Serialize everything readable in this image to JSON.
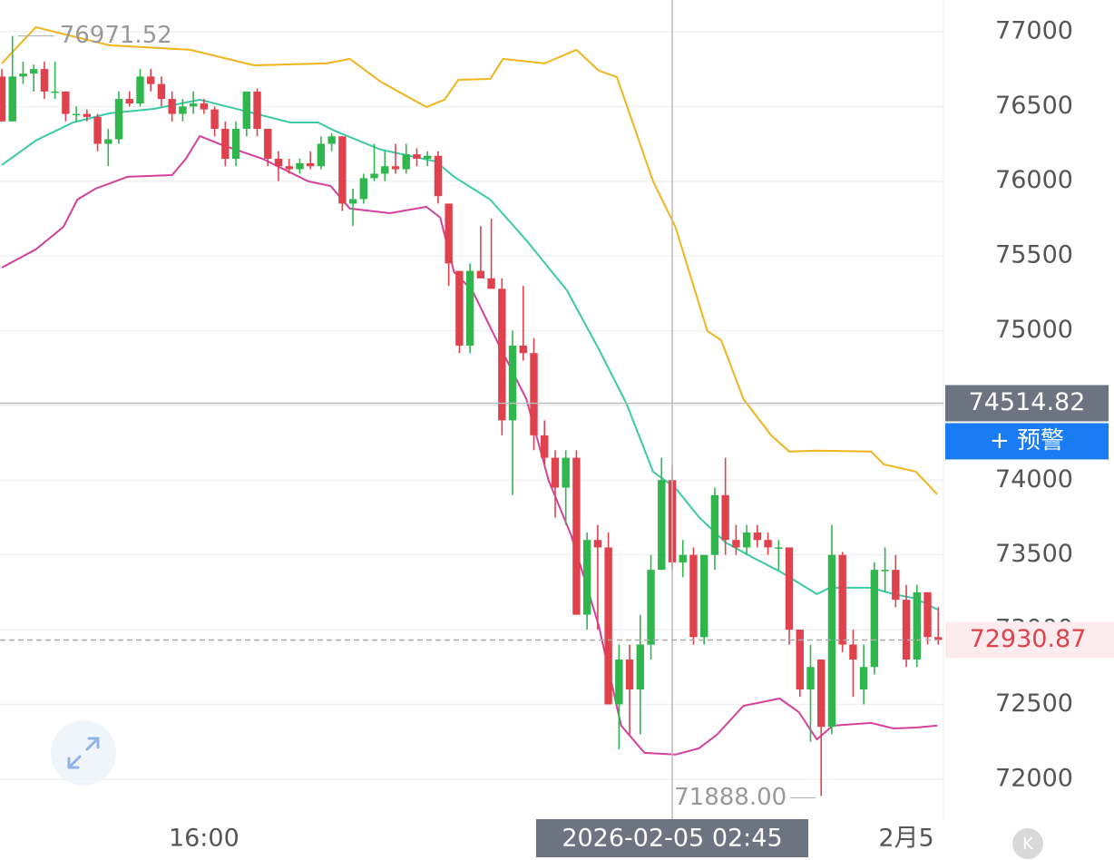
{
  "chart_data": {
    "type": "candlestick",
    "ylim": [
      71720,
      77212
    ],
    "yticks": [
      72000,
      72500,
      73000,
      73500,
      74000,
      74500,
      75000,
      75500,
      76000,
      76500,
      77000
    ],
    "grid": true,
    "up_color": "#2fb74e",
    "down_color": "#e0424d",
    "categories": [
      null,
      null,
      null,
      null,
      null,
      null,
      null,
      null,
      null,
      null,
      null,
      null,
      null,
      null,
      null,
      null,
      null,
      null,
      null,
      "16:00",
      null,
      null,
      null,
      null,
      null,
      null,
      null,
      null,
      null,
      null,
      null,
      null,
      null,
      null,
      null,
      null,
      null,
      null,
      null,
      null,
      null,
      null,
      null,
      null,
      null,
      null,
      null,
      null,
      null,
      null,
      null,
      null,
      null,
      null,
      null,
      null,
      null,
      null,
      null,
      null,
      null,
      null,
      null,
      "2026-02-05 02:45",
      null,
      null,
      null,
      null,
      null,
      null,
      null,
      null,
      null,
      null,
      null,
      null,
      null,
      null,
      null,
      null,
      null,
      null,
      null,
      null,
      null,
      "2月5",
      null,
      null,
      null
    ],
    "ohlc": [
      [
        76700,
        76750,
        76400,
        76400
      ],
      [
        76400,
        76971.52,
        76400,
        76700
      ],
      [
        76700,
        76800,
        76650,
        76720
      ],
      [
        76720,
        76780,
        76600,
        76750
      ],
      [
        76750,
        76800,
        76550,
        76600
      ],
      [
        76600,
        76800,
        76550,
        76600
      ],
      [
        76600,
        76600,
        76400,
        76450
      ],
      [
        76450,
        76500,
        76400,
        76450
      ],
      [
        76450,
        76480,
        76400,
        76430
      ],
      [
        76430,
        76450,
        76200,
        76250
      ],
      [
        76250,
        76350,
        76100,
        76280
      ],
      [
        76280,
        76600,
        76250,
        76550
      ],
      [
        76550,
        76600,
        76500,
        76520
      ],
      [
        76520,
        76750,
        76500,
        76700
      ],
      [
        76700,
        76750,
        76600,
        76650
      ],
      [
        76650,
        76700,
        76500,
        76550
      ],
      [
        76550,
        76600,
        76400,
        76450
      ],
      [
        76450,
        76550,
        76400,
        76500
      ],
      [
        76500,
        76600,
        76450,
        76520
      ],
      [
        76520,
        76550,
        76450,
        76480
      ],
      [
        76480,
        76500,
        76300,
        76350
      ],
      [
        76350,
        76400,
        76100,
        76150
      ],
      [
        76150,
        76400,
        76100,
        76350
      ],
      [
        76350,
        76600,
        76300,
        76600
      ],
      [
        76600,
        76620,
        76300,
        76350
      ],
      [
        76350,
        76350,
        76100,
        76150
      ],
      [
        76150,
        76200,
        76000,
        76100
      ],
      [
        76100,
        76150,
        76050,
        76080
      ],
      [
        76080,
        76150,
        76050,
        76120
      ],
      [
        76120,
        76200,
        76080,
        76100
      ],
      [
        76100,
        76300,
        76080,
        76250
      ],
      [
        76250,
        76320,
        76200,
        76300
      ],
      [
        76300,
        76300,
        75800,
        75850
      ],
      [
        75850,
        75950,
        75700,
        75880
      ],
      [
        75880,
        76050,
        75850,
        76020
      ],
      [
        76020,
        76250,
        76000,
        76050
      ],
      [
        76050,
        76200,
        76000,
        76100
      ],
      [
        76100,
        76250,
        76050,
        76080
      ],
      [
        76080,
        76250,
        76050,
        76180
      ],
      [
        76180,
        76220,
        76100,
        76150
      ],
      [
        76150,
        76200,
        76100,
        76170
      ],
      [
        76170,
        76200,
        75850,
        75900
      ],
      [
        75850,
        75850,
        75300,
        75450
      ],
      [
        75400,
        75400,
        74850,
        74900
      ],
      [
        74900,
        75450,
        74850,
        75400
      ],
      [
        75400,
        75700,
        75350,
        75350
      ],
      [
        75350,
        75750,
        75300,
        75280
      ],
      [
        75280,
        75350,
        74300,
        74400
      ],
      [
        74400,
        75000,
        73900,
        74900
      ],
      [
        74900,
        75300,
        74800,
        74850
      ],
      [
        74850,
        74950,
        74200,
        74300
      ],
      [
        74300,
        74400,
        74100,
        74150
      ],
      [
        74150,
        74200,
        73750,
        73950
      ],
      [
        73950,
        74200,
        73700,
        74150
      ],
      [
        74150,
        74200,
        73100,
        73100
      ],
      [
        73100,
        73650,
        73000,
        73600
      ],
      [
        73600,
        73700,
        73000,
        73550
      ],
      [
        73550,
        73650,
        72500,
        72500
      ],
      [
        72500,
        72900,
        72200,
        72800
      ],
      [
        72800,
        72900,
        72300,
        72600
      ],
      [
        72600,
        73100,
        72300,
        72900
      ],
      [
        72900,
        73500,
        72800,
        73400
      ],
      [
        73400,
        74150,
        73400,
        74000
      ],
      [
        74000,
        74100,
        73400,
        73450
      ],
      [
        73450,
        73600,
        73350,
        73500
      ],
      [
        73500,
        73550,
        72900,
        72950
      ],
      [
        72950,
        73500,
        72900,
        73500
      ],
      [
        73500,
        73950,
        73400,
        73900
      ],
      [
        73900,
        74150,
        73500,
        73600
      ],
      [
        73600,
        73700,
        73500,
        73550
      ],
      [
        73550,
        73700,
        73500,
        73650
      ],
      [
        73650,
        73700,
        73550,
        73600
      ],
      [
        73600,
        73650,
        73500,
        73550
      ],
      [
        73550,
        73600,
        73400,
        73550
      ],
      [
        73550,
        73550,
        72900,
        73000
      ],
      [
        73000,
        73000,
        72550,
        72600
      ],
      [
        72600,
        72900,
        72250,
        72750
      ],
      [
        72800,
        72800,
        71888,
        72350
      ],
      [
        72350,
        73700,
        72300,
        73500
      ],
      [
        73500,
        73520,
        72850,
        72900
      ],
      [
        72900,
        73000,
        72550,
        72800
      ],
      [
        72600,
        72900,
        72500,
        72750
      ],
      [
        72750,
        73450,
        72700,
        73400
      ],
      [
        73400,
        73550,
        73250,
        73400
      ],
      [
        73400,
        73500,
        73150,
        73200
      ],
      [
        73200,
        73300,
        72750,
        72800
      ],
      [
        72800,
        73300,
        72750,
        73250
      ],
      [
        73250,
        73250,
        72900,
        72950
      ],
      [
        72950,
        73150,
        72900,
        72930.87
      ]
    ],
    "bands": [
      {
        "color": "#f0b41c",
        "x": [
          0,
          3.2,
          10.1,
          17.7,
          23.7,
          30.5,
          32.7,
          35.6,
          39.9,
          41.6,
          42.9,
          45.9,
          47.1,
          51,
          54,
          56.1,
          57.8,
          61.2,
          63.3,
          66.3,
          67.6,
          69.7,
          72.3,
          74,
          76.6,
          81.7,
          82.9,
          85.9,
          87.9
        ],
        "values": [
          76788,
          77030,
          76909,
          76879,
          76775,
          76788,
          76818,
          76666,
          76496,
          76545,
          76678,
          76684,
          76818,
          76788,
          76879,
          76739,
          76697,
          75999,
          75695,
          74998,
          74937,
          74542,
          74300,
          74191,
          74197,
          74191,
          74105,
          74057,
          73905
        ]
      },
      {
        "color": "#3cc9a5",
        "x": [
          0,
          3.2,
          6.7,
          10.1,
          14.3,
          18.6,
          23.7,
          27.1,
          29.7,
          31.4,
          35.6,
          40.8,
          42.5,
          45.9,
          49.3,
          53.1,
          56.1,
          58.7,
          61.2,
          63.3,
          65.5,
          68,
          70.6,
          73.1,
          76.6,
          77.8,
          81.7,
          83.8,
          85.9,
          87.9
        ],
        "values": [
          76108,
          76272,
          76393,
          76454,
          76484,
          76545,
          76454,
          76393,
          76393,
          76333,
          76211,
          76132,
          76029,
          75877,
          75604,
          75270,
          74876,
          74512,
          74057,
          73948,
          73754,
          73584,
          73481,
          73390,
          73238,
          73280,
          73280,
          73238,
          73208,
          73135
        ]
      },
      {
        "color": "#d4409c",
        "x": [
          0,
          3.2,
          5.8,
          7.1,
          8.8,
          11.8,
          16,
          17.3,
          18.6,
          20.7,
          24.5,
          28.8,
          30.9,
          32.7,
          36.5,
          39.9,
          41.2,
          42.5,
          44.2,
          46.7,
          49.3,
          51.4,
          53.5,
          56.1,
          58.2,
          60.4,
          63.3,
          65.5,
          67.2,
          69.7,
          73.1,
          74.9,
          76.6,
          78.1,
          81.7,
          83.8,
          85.9,
          87.9
        ],
        "values": [
          75422,
          75544,
          75695,
          75877,
          75950,
          76029,
          76041,
          76150,
          76302,
          76242,
          76150,
          75999,
          75968,
          75817,
          75786,
          75829,
          75756,
          75392,
          75270,
          74907,
          74542,
          73996,
          73632,
          73025,
          72358,
          72176,
          72164,
          72206,
          72297,
          72491,
          72539,
          72448,
          72266,
          72358,
          72376,
          72339,
          72345,
          72358
        ]
      }
    ],
    "max_label": {
      "value": 76971.52
    },
    "min_label": {
      "value": 71888,
      "label": "71888.00"
    },
    "crosshair": {
      "x": "2026-02-05 02:45",
      "y": 74514.82
    },
    "last_price": 72930.87,
    "alert_button": "+ 预警",
    "corner_icon": "K"
  }
}
